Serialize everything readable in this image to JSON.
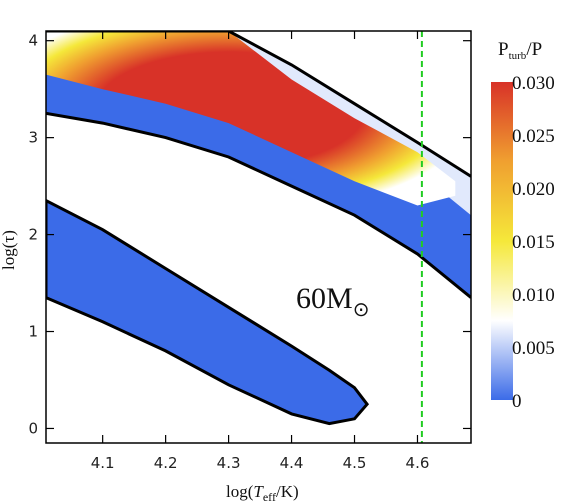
{
  "chart_data": {
    "type": "heatmap",
    "xlabel_main": "log(",
    "xlabel_var": "T",
    "xlabel_sub": "eff",
    "xlabel_tail": "/K)",
    "ylabel": "log(τ)",
    "xlim": [
      4.01,
      4.685
    ],
    "ylim": [
      -0.15,
      4.1
    ],
    "x_ticks": [
      "4.1",
      "4.2",
      "4.3",
      "4.4",
      "4.5",
      "4.6"
    ],
    "x_tick_values": [
      4.1,
      4.2,
      4.3,
      4.4,
      4.5,
      4.6
    ],
    "y_ticks": [
      "0",
      "1",
      "2",
      "3",
      "4"
    ],
    "y_tick_values": [
      0,
      1,
      2,
      3,
      4
    ],
    "annotation": {
      "text": "60M",
      "symbol": "⊙"
    },
    "reference_line": {
      "x": 4.607,
      "color": "#22cc22",
      "style": "dashed"
    },
    "colorbar": {
      "title_main": "P",
      "title_sub": "turb",
      "title_tail": "/P",
      "range": [
        0,
        0.03
      ],
      "ticks": [
        "0.030",
        "0.025",
        "0.020",
        "0.015",
        "0.010",
        "0.005",
        "0"
      ],
      "tick_values": [
        0.03,
        0.025,
        0.02,
        0.015,
        0.01,
        0.005,
        0
      ],
      "colors": [
        "#3b6be8",
        "#ffffff",
        "#f5e83a",
        "#f0a030",
        "#d83228"
      ]
    },
    "regions": [
      {
        "name": "upper band",
        "upper_boundary": [
          [
            4.01,
            4.1
          ],
          [
            4.1,
            4.1
          ],
          [
            4.3,
            4.1
          ],
          [
            4.4,
            3.75
          ],
          [
            4.5,
            3.35
          ],
          [
            4.6,
            2.95
          ],
          [
            4.685,
            2.6
          ]
        ],
        "lower_boundary": [
          [
            4.01,
            3.25
          ],
          [
            4.1,
            3.15
          ],
          [
            4.2,
            3.0
          ],
          [
            4.3,
            2.8
          ],
          [
            4.4,
            2.5
          ],
          [
            4.5,
            2.2
          ],
          [
            4.6,
            1.8
          ],
          [
            4.685,
            1.35
          ]
        ],
        "peak_value": 0.03
      },
      {
        "name": "lower band",
        "upper_boundary": [
          [
            4.01,
            2.35
          ],
          [
            4.1,
            2.05
          ],
          [
            4.2,
            1.65
          ],
          [
            4.3,
            1.25
          ],
          [
            4.4,
            0.85
          ],
          [
            4.46,
            0.6
          ],
          [
            4.5,
            0.42
          ],
          [
            4.52,
            0.25
          ]
        ],
        "lower_boundary": [
          [
            4.01,
            1.35
          ],
          [
            4.1,
            1.1
          ],
          [
            4.2,
            0.8
          ],
          [
            4.3,
            0.45
          ],
          [
            4.4,
            0.15
          ],
          [
            4.46,
            0.05
          ],
          [
            4.5,
            0.1
          ],
          [
            4.52,
            0.25
          ]
        ],
        "peak_value": 0.0
      }
    ]
  }
}
